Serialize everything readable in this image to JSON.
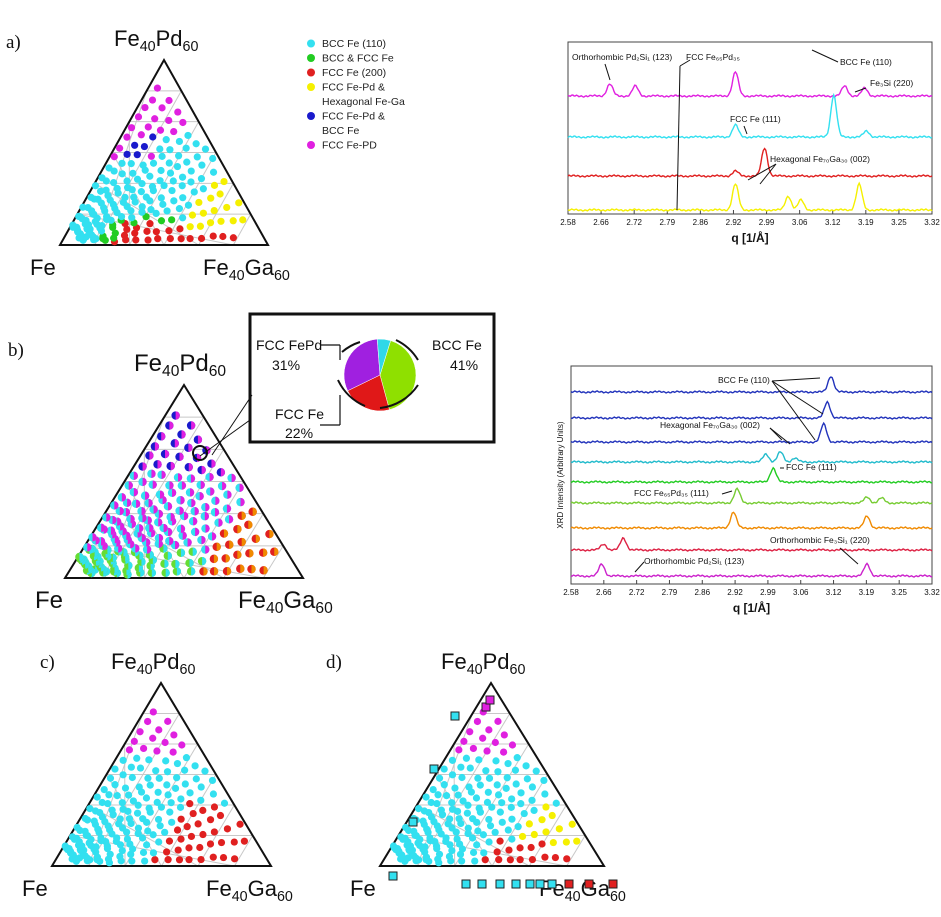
{
  "tern": {
    "top": "Fe",
    "top_sub1": "40",
    "top_b": "Pd",
    "top_sub2": "60",
    "left": "Fe",
    "right": "Fe",
    "right_sub1": "40",
    "right_b": "Ga",
    "right_sub2": "60"
  },
  "panels": {
    "a": "a)",
    "b": "b)",
    "c": "c)",
    "d": "d)"
  },
  "legend": [
    {
      "label": "BCC Fe (110)",
      "color": "#33e0f0"
    },
    {
      "label": "BCC & FCC Fe",
      "color": "#22cc22"
    },
    {
      "label": "FCC Fe (200)",
      "color": "#e02020"
    },
    {
      "label": "FCC Fe-Pd &",
      "color": "#f5f000"
    },
    {
      "label": "Hexagonal Fe-Ga",
      "color": ""
    },
    {
      "label": "FCC Fe-Pd &",
      "color": "#1a1acc"
    },
    {
      "label": "BCC Fe",
      "color": ""
    },
    {
      "label": "FCC Fe-PD",
      "color": "#e020e0"
    }
  ],
  "pie": {
    "labels": [
      {
        "name": "FCC FePd",
        "pct": "31%"
      },
      {
        "name": "BCC Fe",
        "pct": "41%"
      },
      {
        "name": "FCC Fe",
        "pct": "22%"
      }
    ],
    "chart_data": {
      "type": "pie",
      "slices": [
        {
          "label": "BCC Fe",
          "value": 41,
          "color": "#8fe000"
        },
        {
          "label": "FCC Fe",
          "value": 22,
          "color": "#e01818"
        },
        {
          "label": "FCC FePd",
          "value": 31,
          "color": "#a020e0"
        },
        {
          "label": "",
          "value": 6,
          "color": "#30d8e8"
        }
      ]
    }
  },
  "xrd_a": {
    "ticks": [
      "2.58",
      "2.66",
      "2.72",
      "2.79",
      "2.86",
      "2.92",
      "2.99",
      "3.06",
      "3.12",
      "3.19",
      "3.25",
      "3.32"
    ],
    "xlabel": "q [1/Å]",
    "annotations": [
      {
        "text": "Orthorhombic Pd₂Si₁ (123)"
      },
      {
        "text": "FCC Fe₆₅Pd₃₅"
      },
      {
        "text": "BCC Fe (110)"
      },
      {
        "text": "Fe₃Si (220)"
      },
      {
        "text": "FCC Fe (111)"
      },
      {
        "text": "Hexagonal Fe₇₀Ga₃₀ (002)"
      }
    ]
  },
  "xrd_b": {
    "ticks": [
      "2.58",
      "2.66",
      "2.72",
      "2.79",
      "2.86",
      "2.92",
      "2.99",
      "3.06",
      "3.12",
      "3.19",
      "3.25",
      "3.32"
    ],
    "xlabel": "q [1/Å]",
    "ylabel": "XRD Intensity (Arbitrary Units)",
    "annotations": [
      {
        "text": "BCC Fe (110)"
      },
      {
        "text": "Hexagonal Fe₇₀Ga₃₀ (002)"
      },
      {
        "text": "FCC Fe (111)"
      },
      {
        "text": "FCC Fe₆₅Pd₃₅ (111)"
      },
      {
        "text": "Orthorhombic Fe₃Si₁ (220)"
      },
      {
        "text": "Orthorhombic Pd₂Si₁ (123)"
      }
    ]
  },
  "colors": {
    "cyan": "#33e0f0",
    "green": "#22cc22",
    "red": "#e02020",
    "yellow": "#f5f000",
    "blue": "#1a1acc",
    "magenta": "#e020e0",
    "orange": "#f08a00",
    "lime": "#66dd33"
  }
}
